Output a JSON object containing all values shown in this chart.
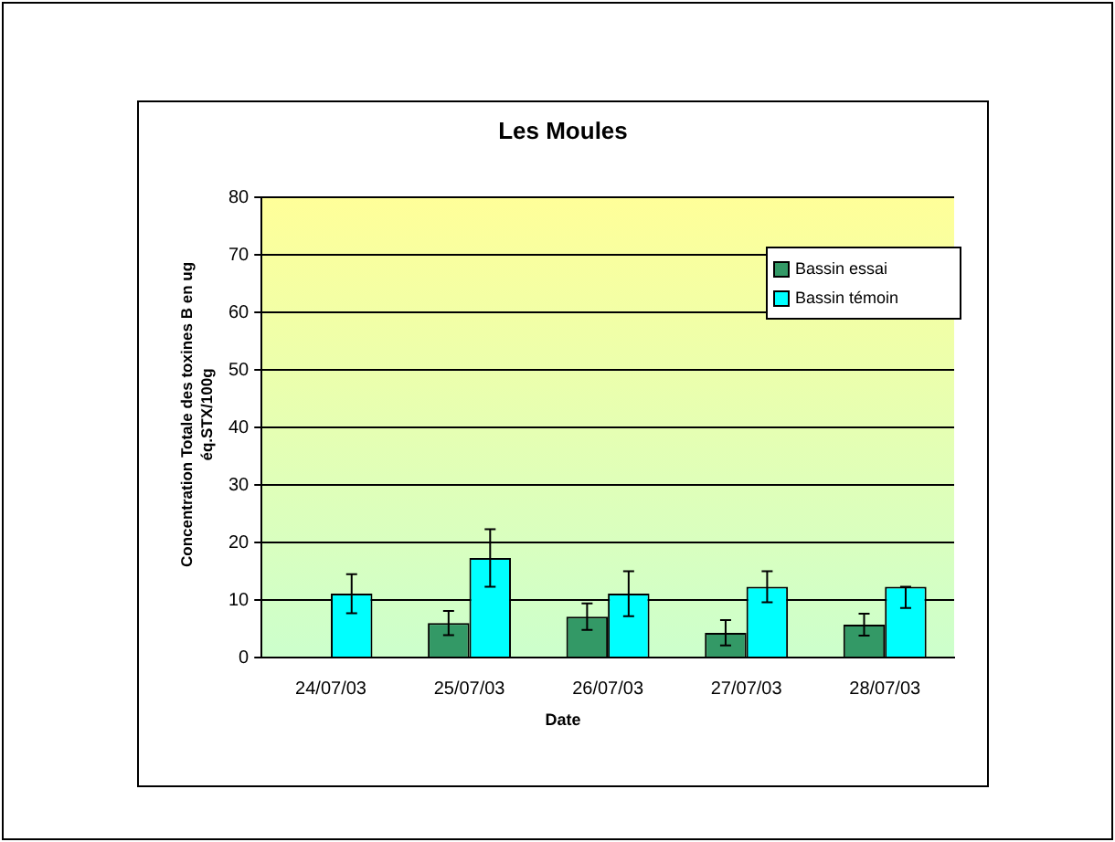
{
  "chart_data": {
    "type": "bar",
    "title": "Les Moules",
    "xlabel": "Date",
    "ylabel": "Concentration Totale des toxines B en ug éq.STX/100g",
    "categories": [
      "24/07/03",
      "25/07/03",
      "26/07/03",
      "27/07/03",
      "28/07/03"
    ],
    "series": [
      {
        "name": "Bassin essai",
        "color": "#339966",
        "values": [
          null,
          6.0,
          7.1,
          4.3,
          5.7
        ],
        "errors": [
          null,
          2.1,
          2.3,
          2.2,
          1.9
        ]
      },
      {
        "name": "Bassin témoin",
        "color": "#00ffff",
        "values": [
          11.1,
          17.3,
          11.1,
          12.3,
          12.3
        ],
        "errors": [
          3.4,
          5.0,
          3.9,
          2.7,
          [
            8.6,
            12.3
          ]
        ]
      }
    ],
    "ylim": [
      0,
      80
    ],
    "yticks": [
      0,
      10,
      20,
      30,
      40,
      50,
      60,
      70,
      80
    ],
    "grid": "y",
    "legend": "top right"
  }
}
